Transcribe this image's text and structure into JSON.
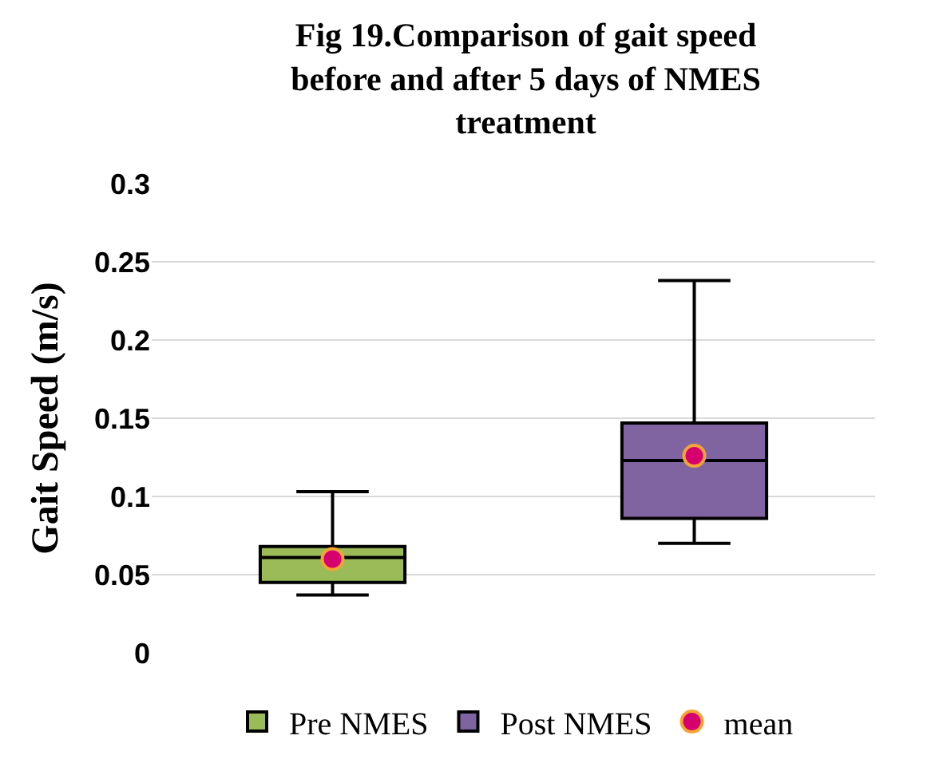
{
  "chart_data": {
    "type": "box",
    "title": "Fig 19.Comparison of gait speed before and after 5 days of NMES treatment",
    "ylabel": "Gait Speed (m/s)",
    "categories": [
      null,
      null
    ],
    "series": [
      {
        "name": "Pre NMES",
        "color": "#9bbb59",
        "boxes": [
          {
            "low": 0.037,
            "q1": 0.045,
            "median": 0.061,
            "q3": 0.068,
            "high": 0.103
          },
          null
        ]
      },
      {
        "name": "Post NMES",
        "color": "#8064a2",
        "boxes": [
          null,
          {
            "low": 0.07,
            "q1": 0.086,
            "median": 0.123,
            "q3": 0.147,
            "high": 0.238
          }
        ]
      },
      {
        "name": "mean",
        "type": "scatter",
        "color": "#d6006f",
        "values": [
          0.06,
          0.126
        ]
      }
    ],
    "ylim": [
      0,
      0.3
    ],
    "yticks": [
      0,
      0.05,
      0.1,
      0.15,
      0.2,
      0.25,
      0.3
    ],
    "grid": "y",
    "legend": "bottom",
    "marker": "circle"
  }
}
